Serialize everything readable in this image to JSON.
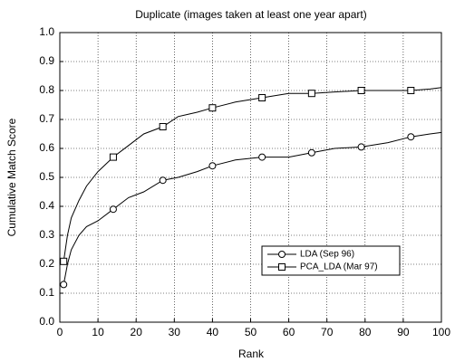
{
  "chart_data": {
    "type": "line",
    "title": "Duplicate (images taken at least one year apart)",
    "x_label": "Rank",
    "y_label": "Cumulative Match Score",
    "x": [
      1,
      2,
      3,
      5,
      7,
      10,
      14,
      18,
      22,
      27,
      31,
      36,
      40,
      46,
      53,
      60,
      66,
      72,
      79,
      86,
      92,
      97,
      100
    ],
    "series": [
      {
        "name": "LDA (Sep 96)",
        "color": "#000000",
        "marker": "circle",
        "marker_x": [
          1,
          14,
          27,
          40,
          53,
          66,
          79,
          92
        ],
        "values": [
          0.13,
          0.2,
          0.25,
          0.3,
          0.33,
          0.35,
          0.39,
          0.43,
          0.45,
          0.49,
          0.5,
          0.52,
          0.54,
          0.56,
          0.57,
          0.57,
          0.585,
          0.6,
          0.605,
          0.62,
          0.64,
          0.65,
          0.655
        ]
      },
      {
        "name": "PCA_LDA (Mar 97)",
        "color": "#000000",
        "marker": "square",
        "marker_x": [
          1,
          14,
          27,
          40,
          53,
          66,
          79,
          92
        ],
        "values": [
          0.21,
          0.3,
          0.36,
          0.42,
          0.47,
          0.52,
          0.57,
          0.61,
          0.65,
          0.675,
          0.71,
          0.725,
          0.74,
          0.76,
          0.775,
          0.79,
          0.79,
          0.795,
          0.8,
          0.8,
          0.8,
          0.805,
          0.81
        ]
      }
    ],
    "xlim": [
      0,
      100
    ],
    "xticks": [
      0,
      10,
      20,
      30,
      40,
      50,
      60,
      70,
      80,
      90,
      100
    ],
    "ylim": [
      0,
      1
    ],
    "yticks": [
      {
        "value": 0,
        "label": "0.0"
      },
      0.1,
      0.2,
      0.3,
      0.4,
      0.5,
      0.6,
      0.7,
      0.8,
      0.9,
      {
        "value": 1,
        "label": "1.0"
      }
    ],
    "grid": true,
    "legend": "lower right"
  }
}
